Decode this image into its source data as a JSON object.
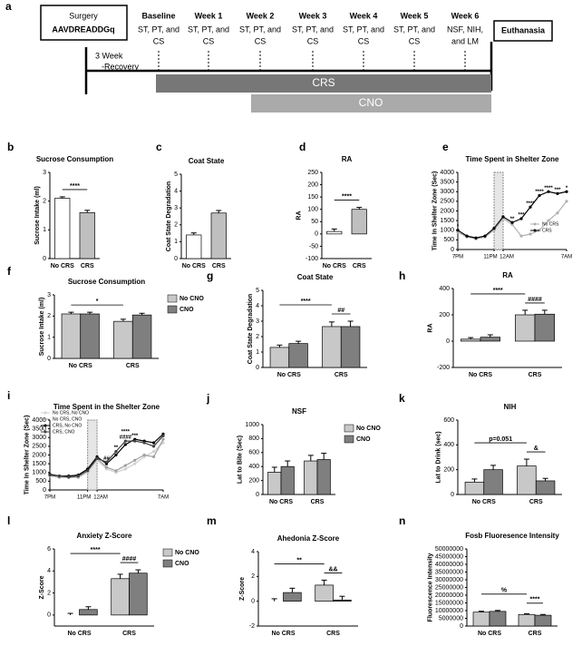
{
  "timeline": {
    "label": "a",
    "surgery": "Surgery",
    "virus": "AAVDREADDGq",
    "recovery": [
      "3 Week",
      "-Recovery"
    ],
    "weeks": [
      {
        "name": "Baseline",
        "tests": [
          "ST, PT, and",
          "CS"
        ]
      },
      {
        "name": "Week 1",
        "tests": [
          "ST, PT, and",
          "CS"
        ]
      },
      {
        "name": "Week 2",
        "tests": [
          "ST, PT, and",
          "CS"
        ]
      },
      {
        "name": "Week 3",
        "tests": [
          "ST, PT, and",
          "CS"
        ]
      },
      {
        "name": "Week 4",
        "tests": [
          "ST, PT, and",
          "CS"
        ]
      },
      {
        "name": "Week 5",
        "tests": [
          "ST, PT, and",
          "CS"
        ]
      },
      {
        "name": "Week 6",
        "tests": [
          "NSF, NIH,",
          "and LM"
        ]
      }
    ],
    "end": "Euthanasia",
    "bars": [
      "CRS",
      "CNO"
    ]
  },
  "chart_data": [
    {
      "type": "bar",
      "label": "b",
      "title": "Sucrose Consumption",
      "ylabel": "Sucrose Intake (ml)",
      "categories": [
        "No CRS",
        "CRS"
      ],
      "values": [
        2.1,
        1.6
      ],
      "errors": [
        0.05,
        0.08
      ],
      "colors": [
        "#ffffff",
        "#bfbfbf"
      ],
      "ylim": [
        0,
        3
      ],
      "yticks": [
        0,
        1,
        2,
        3
      ],
      "brackets": [
        {
          "text": "****"
        }
      ]
    },
    {
      "type": "bar",
      "label": "c",
      "title": "Coat State",
      "ylabel": "Coat State Degradation",
      "categories": [
        "No CRS",
        "CRS"
      ],
      "values": [
        1.4,
        2.7
      ],
      "errors": [
        0.12,
        0.15
      ],
      "colors": [
        "#ffffff",
        "#bfbfbf"
      ],
      "ylim": [
        0,
        5
      ],
      "yticks": [
        0,
        1,
        2,
        3,
        4,
        5
      ]
    },
    {
      "type": "bar",
      "label": "d",
      "title": "RA",
      "ylabel": "RA",
      "categories": [
        "No CRS",
        "CRS"
      ],
      "values": [
        10,
        100
      ],
      "errors": [
        10,
        8
      ],
      "colors": [
        "#ffffff",
        "#bfbfbf"
      ],
      "ylim": [
        -100,
        250
      ],
      "yticks": [
        -100,
        -50,
        0,
        50,
        100,
        150,
        200,
        250
      ],
      "brackets": [
        {
          "text": "****"
        }
      ]
    },
    {
      "type": "line",
      "label": "e",
      "title": "Time Spent in Shelter Zone",
      "ylabel": "Time In Shelter Zone (Sec)",
      "x": [
        0,
        1,
        2,
        3,
        4,
        5,
        6,
        7,
        8,
        9,
        10,
        11,
        12
      ],
      "xlim": [
        0,
        12
      ],
      "xticks": [
        {
          "value": 0,
          "label": "7PM"
        },
        {
          "value": 4,
          "label": "11PM"
        },
        {
          "value": 5,
          "label": "12AM"
        },
        {
          "value": 12,
          "label": "7AM"
        }
      ],
      "shade": [
        4,
        5
      ],
      "ylim": [
        0,
        4000
      ],
      "yticks": [
        0,
        500,
        1000,
        1500,
        2000,
        2500,
        3000,
        3500,
        4000
      ],
      "legend": "lower right",
      "series": [
        {
          "name": "No CRS",
          "color": "#b0b0b0",
          "values": [
            900,
            650,
            550,
            650,
            1000,
            1600,
            1300,
            700,
            800,
            1000,
            1500,
            1900,
            2500
          ]
        },
        {
          "name": "CRS",
          "color": "#000000",
          "values": [
            1000,
            700,
            600,
            700,
            1100,
            1700,
            1400,
            1600,
            2200,
            2800,
            3000,
            2900,
            3000
          ]
        }
      ],
      "annotations": [
        {
          "x": 0,
          "text": "*"
        },
        {
          "x": 6,
          "text": "**"
        },
        {
          "x": 7,
          "text": "***"
        },
        {
          "x": 8,
          "text": "****"
        },
        {
          "x": 9,
          "text": "****"
        },
        {
          "x": 10,
          "text": "****"
        },
        {
          "x": 11,
          "text": "***"
        },
        {
          "x": 12,
          "text": "*"
        }
      ]
    },
    {
      "type": "grouped",
      "label": "f",
      "title": "Sucrose Consumption",
      "ylabel": "Sucrose Intake (ml)",
      "categories": [
        "No CRS",
        "CRS"
      ],
      "ylim": [
        0,
        3
      ],
      "yticks": [
        0,
        1,
        2,
        3
      ],
      "legend": "right",
      "series": [
        {
          "name": "No CNO",
          "color": "#c8c8c8",
          "values": [
            2.1,
            1.75
          ],
          "errors": [
            0.08,
            0.1
          ]
        },
        {
          "name": "CNO",
          "color": "#7f7f7f",
          "values": [
            2.1,
            2.05
          ],
          "errors": [
            0.08,
            0.08
          ]
        }
      ],
      "brackets": [
        {
          "text": "*"
        }
      ]
    },
    {
      "type": "grouped",
      "label": "g",
      "title": "Coat State",
      "ylabel": "Coat State Degradation",
      "categories": [
        "No CRS",
        "CRS"
      ],
      "ylim": [
        0,
        5
      ],
      "yticks": [
        0,
        1,
        2,
        3,
        4,
        5
      ],
      "series": [
        {
          "name": "No CNO",
          "color": "#c8c8c8",
          "values": [
            1.3,
            2.65
          ],
          "errors": [
            0.15,
            0.3
          ]
        },
        {
          "name": "CNO",
          "color": "#7f7f7f",
          "values": [
            1.55,
            2.65
          ],
          "errors": [
            0.15,
            0.35
          ]
        }
      ],
      "brackets": [
        {
          "text": "****"
        },
        {
          "text": "##"
        }
      ]
    },
    {
      "type": "grouped",
      "label": "h",
      "title": "RA",
      "ylabel": "RA",
      "categories": [
        "No CRS",
        "CRS"
      ],
      "ylim": [
        -200,
        400
      ],
      "yticks": [
        -200,
        0,
        200,
        400
      ],
      "series": [
        {
          "name": "No CNO",
          "color": "#c8c8c8",
          "values": [
            15,
            200
          ],
          "errors": [
            12,
            35
          ]
        },
        {
          "name": "CNO",
          "color": "#7f7f7f",
          "values": [
            30,
            205
          ],
          "errors": [
            18,
            30
          ]
        }
      ],
      "brackets": [
        {
          "text": "****"
        },
        {
          "text": "####"
        }
      ]
    },
    {
      "type": "line",
      "label": "i",
      "title": "Time Spent in the Shelter Zone",
      "ylabel": "Time In Shelter Zone (Sec)",
      "x": [
        0,
        1,
        2,
        3,
        4,
        5,
        6,
        7,
        8,
        9,
        10,
        11,
        12
      ],
      "xlim": [
        0,
        12
      ],
      "xticks": [
        {
          "value": 0,
          "label": "7PM"
        },
        {
          "value": 4,
          "label": "11PM"
        },
        {
          "value": 5,
          "label": "12AM"
        },
        {
          "value": 12,
          "label": "7AM"
        }
      ],
      "shade": [
        4,
        5
      ],
      "ylim": [
        0,
        4000
      ],
      "yticks": [
        0,
        500,
        1000,
        1500,
        2000,
        2500,
        3000,
        3500,
        4000
      ],
      "legend": "upper right",
      "series": [
        {
          "name": "No CRS, No CNO",
          "color": "#d0d0d0",
          "values": [
            800,
            700,
            750,
            700,
            1000,
            1700,
            1200,
            1000,
            1200,
            1500,
            1900,
            2200,
            2700
          ]
        },
        {
          "name": "No CRS, CNO",
          "color": "#a0a0a0",
          "values": [
            850,
            750,
            700,
            750,
            1100,
            1800,
            1300,
            1100,
            1400,
            1700,
            2000,
            1900,
            2900
          ]
        },
        {
          "name": "CRS, No CNO",
          "color": "#000000",
          "values": [
            900,
            800,
            800,
            850,
            1200,
            1900,
            1500,
            2000,
            2600,
            2900,
            2800,
            2700,
            3200
          ]
        },
        {
          "name": "CRS, CNO",
          "color": "#404040",
          "values": [
            850,
            800,
            750,
            800,
            1100,
            1800,
            1600,
            2200,
            2800,
            2800,
            2700,
            2500,
            3100
          ]
        }
      ],
      "annotations": [
        {
          "x": 6,
          "text": "##"
        },
        {
          "x": 7,
          "text": "**"
        },
        {
          "x": 8,
          "text": "####"
        },
        {
          "x": 8,
          "text": "****"
        },
        {
          "x": 9,
          "text": "***"
        }
      ]
    },
    {
      "type": "grouped",
      "label": "j",
      "title": "NSF",
      "ylabel": "Lat to Bite (Sec)",
      "categories": [
        "No CRS",
        "CRS"
      ],
      "ylim": [
        0,
        1000
      ],
      "yticks": [
        0,
        200,
        400,
        600,
        800,
        1000
      ],
      "legend": "right",
      "series": [
        {
          "name": "No CNO",
          "color": "#c8c8c8",
          "values": [
            320,
            480
          ],
          "errors": [
            70,
            80
          ]
        },
        {
          "name": "CNO",
          "color": "#7f7f7f",
          "values": [
            400,
            500
          ],
          "errors": [
            80,
            90
          ]
        }
      ]
    },
    {
      "type": "grouped",
      "label": "k",
      "title": "NIH",
      "ylabel": "Lat to Drink (sec)",
      "categories": [
        "No CRS",
        "CRS"
      ],
      "ylim": [
        0,
        600
      ],
      "yticks": [
        0,
        200,
        400,
        600
      ],
      "series": [
        {
          "name": "No CNO",
          "color": "#c8c8c8",
          "values": [
            100,
            230
          ],
          "errors": [
            25,
            55
          ]
        },
        {
          "name": "CNO",
          "color": "#7f7f7f",
          "values": [
            200,
            110
          ],
          "errors": [
            35,
            20
          ]
        }
      ],
      "brackets": [
        {
          "text": "p=0.051"
        },
        {
          "text": "&"
        }
      ]
    },
    {
      "type": "grouped",
      "label": "l",
      "title": "Anxiety Z-Score",
      "ylabel": "Z-Score",
      "categories": [
        "No CRS",
        "CRS"
      ],
      "ylim": [
        -1,
        6
      ],
      "yticks": [
        0,
        2,
        4,
        6
      ],
      "legend": "right",
      "series": [
        {
          "name": "No CNO",
          "color": "#c8c8c8",
          "values": [
            0,
            3.3
          ],
          "errors": [
            0.15,
            0.4
          ]
        },
        {
          "name": "CNO",
          "color": "#7f7f7f",
          "values": [
            0.5,
            3.8
          ],
          "errors": [
            0.25,
            0.3
          ]
        }
      ],
      "brackets": [
        {
          "text": "****"
        },
        {
          "text": "####"
        }
      ]
    },
    {
      "type": "grouped",
      "label": "m",
      "title": "Ahedonia Z-Score",
      "ylabel": "Z-Score",
      "categories": [
        "No CRS",
        "CRS"
      ],
      "ylim": [
        -2,
        4
      ],
      "yticks": [
        -2,
        0,
        2,
        4
      ],
      "series": [
        {
          "name": "No CNO",
          "color": "#c8c8c8",
          "values": [
            0,
            1.3
          ],
          "errors": [
            0.2,
            0.4
          ]
        },
        {
          "name": "CNO",
          "color": "#7f7f7f",
          "values": [
            0.7,
            0.1
          ],
          "errors": [
            0.35,
            0.3
          ]
        }
      ],
      "brackets": [
        {
          "text": "**"
        },
        {
          "text": "&&"
        }
      ]
    },
    {
      "type": "grouped",
      "label": "n",
      "title": "Fosb Fluoresence Intensity",
      "ylabel": "Fluorescence Intensity",
      "categories": [
        "No CRS",
        "CRS"
      ],
      "ylim": [
        0,
        50000000
      ],
      "yticks": [
        0,
        5000000,
        10000000,
        15000000,
        20000000,
        25000000,
        30000000,
        35000000,
        40000000,
        45000000,
        50000000
      ],
      "series": [
        {
          "name": "No CNO",
          "color": "#c8c8c8",
          "values": [
            9000000,
            7500000
          ],
          "errors": [
            600000,
            500000
          ]
        },
        {
          "name": "CNO",
          "color": "#7f7f7f",
          "values": [
            9500000,
            7000000
          ],
          "errors": [
            600000,
            500000
          ]
        }
      ],
      "brackets": [
        {
          "text": "%"
        },
        {
          "text": "****"
        }
      ]
    }
  ]
}
